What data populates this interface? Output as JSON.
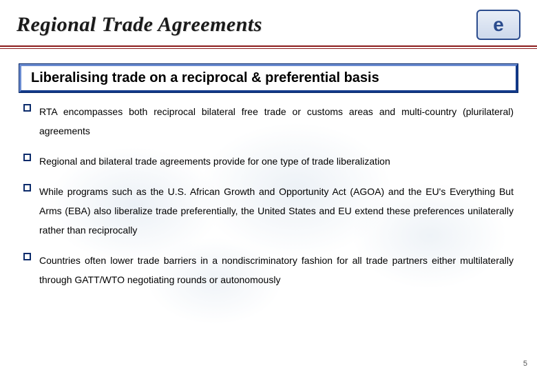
{
  "title": "Regional Trade Agreements",
  "subtitle": "Liberalising trade on a reciprocal & preferential basis",
  "logo_text": "e",
  "bullets": [
    "RTA encompasses both reciprocal bilateral free trade or customs areas and multi-country (plurilateral) agreements",
    "Regional and bilateral trade agreements provide for one type of trade liberalization",
    "While programs such as the U.S. African Growth and Opportunity Act (AGOA) and the EU's Everything But Arms (EBA) also liberalize trade preferentially, the United States and EU extend these preferences unilaterally rather than reciprocally",
    "Countries often lower trade barriers in a nondiscriminatory fashion for all trade partners either multilaterally through GATT/WTO negotiating rounds or autonomously"
  ],
  "page_number": "5",
  "colors": {
    "rule": "#8a1a1a",
    "box_border_light": "#6a8bd0",
    "box_border_dark": "#123a8a",
    "bullet_border": "#0a2a6a",
    "logo_border": "#2a4b8d"
  },
  "typography": {
    "title_fontsize": 30,
    "title_family": "Georgia serif italic bold",
    "subtitle_fontsize": 20,
    "body_fontsize": 14,
    "body_lineheight": 2.0
  }
}
